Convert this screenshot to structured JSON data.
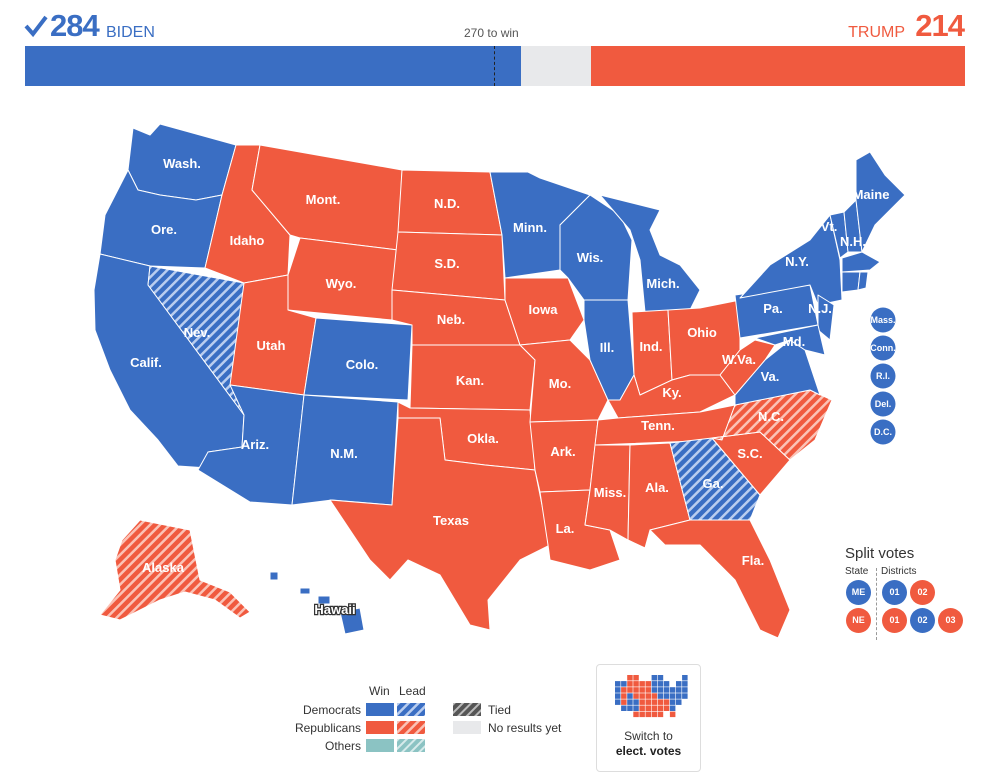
{
  "header": {
    "biden_votes": "284",
    "biden_name": "BIDEN",
    "trump_votes": "214",
    "trump_name": "TRUMP",
    "threshold": "270 to win"
  },
  "colors": {
    "dem": "#3a6ec3",
    "rep": "#f05a3f",
    "other": "#8bc3c3",
    "tied": "#555555",
    "none": "#e8e9eb"
  },
  "map": {
    "state_labels": {
      "wa": "Wash.",
      "or": "Ore.",
      "ca": "Calif.",
      "nv": "Nev.",
      "id": "Idaho",
      "mt": "Mont.",
      "wy": "Wyo.",
      "ut": "Utah",
      "co": "Colo.",
      "az": "Ariz.",
      "nm": "N.M.",
      "nd": "N.D.",
      "sd": "S.D.",
      "ne": "Neb.",
      "ks": "Kan.",
      "ok": "Okla.",
      "tx": "Texas",
      "mn": "Minn.",
      "ia": "Iowa",
      "mo": "Mo.",
      "ar": "Ark.",
      "la": "La.",
      "wi": "Wis.",
      "il": "Ill.",
      "mi": "Mich.",
      "in": "Ind.",
      "oh": "Ohio",
      "ky": "Ky.",
      "tn": "Tenn.",
      "ms": "Miss.",
      "al": "Ala.",
      "ga": "Ga.",
      "fl": "Fla.",
      "sc": "S.C.",
      "nc": "N.C.",
      "va": "Va.",
      "wv": "W.Va.",
      "pa": "Pa.",
      "ny": "N.Y.",
      "vt": "Vt.",
      "nh": "N.H.",
      "me": "Maine",
      "nj": "N.J.",
      "md": "Md.",
      "ak": "Alaska",
      "hi": "Hawaii"
    },
    "small_states": [
      "Mass.",
      "Conn.",
      "R.I.",
      "Del.",
      "D.C."
    ]
  },
  "split_votes": {
    "title": "Split votes",
    "state_label": "State",
    "districts_label": "Districts",
    "maine": {
      "state": "ME",
      "districts": [
        "01",
        "02"
      ]
    },
    "nebraska": {
      "state": "NE",
      "districts": [
        "01",
        "02",
        "03"
      ]
    }
  },
  "legend": {
    "win": "Win",
    "lead": "Lead",
    "democrats": "Democrats",
    "republicans": "Republicans",
    "others": "Others",
    "tied": "Tied",
    "no_results": "No results yet"
  },
  "switch_button": {
    "line1": "Switch to",
    "line2": "elect. votes"
  }
}
